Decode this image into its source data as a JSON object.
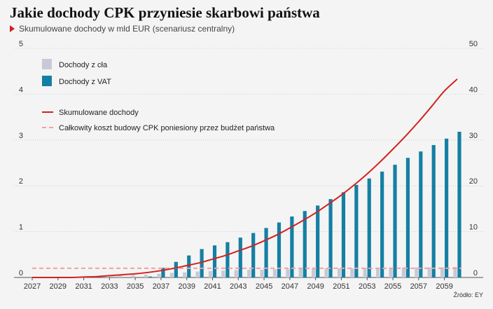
{
  "title": "Jakie dochody CPK przyniesie skarbowi państwa",
  "subtitle": "Skumulowane dochody w mld EUR (scenariusz centralny)",
  "source": "Źródło: EY",
  "colors": {
    "cla": "#c7c9d8",
    "vat": "#157fa3",
    "cumulative": "#d2221e",
    "cost": "#f2a1a0",
    "grid": "#c8c8c8"
  },
  "chart_data": {
    "type": "bar",
    "x": [
      2027,
      2028,
      2029,
      2030,
      2031,
      2032,
      2033,
      2034,
      2035,
      2036,
      2037,
      2038,
      2039,
      2040,
      2041,
      2042,
      2043,
      2044,
      2045,
      2046,
      2047,
      2048,
      2049,
      2050,
      2051,
      2052,
      2053,
      2054,
      2055,
      2056,
      2057,
      2058,
      2059,
      2060
    ],
    "x_tick_labels": [
      "2027",
      "2029",
      "2031",
      "2033",
      "2035",
      "2037",
      "2039",
      "2041",
      "2043",
      "2045",
      "2047",
      "2049",
      "2051",
      "2053",
      "2055",
      "2057",
      "2059"
    ],
    "left_axis": {
      "ylim": [
        0,
        5
      ],
      "ticks": [
        "0",
        "1",
        "2",
        "3",
        "4",
        "5"
      ]
    },
    "right_axis": {
      "ylim": [
        0,
        50
      ],
      "ticks": [
        "0",
        "10",
        "20",
        "30",
        "40",
        "50"
      ]
    },
    "legend_position": "top-left",
    "series": [
      {
        "name": "Dochody z cła",
        "type": "bar",
        "axis": "left",
        "values": [
          0,
          0,
          0,
          0,
          0.01,
          0.02,
          0.03,
          0.04,
          0.05,
          0.06,
          0.08,
          0.1,
          0.11,
          0.13,
          0.14,
          0.15,
          0.16,
          0.17,
          0.17,
          0.18,
          0.18,
          0.19,
          0.19,
          0.2,
          0.2,
          0.2,
          0.21,
          0.21,
          0.21,
          0.22,
          0.22,
          0.22,
          0.22,
          0.23
        ]
      },
      {
        "name": "Dochody z VAT",
        "type": "bar",
        "axis": "left",
        "values": [
          0,
          0,
          0,
          0,
          0,
          0,
          0,
          0,
          0,
          0.02,
          0.21,
          0.34,
          0.48,
          0.62,
          0.7,
          0.77,
          0.87,
          0.97,
          1.08,
          1.2,
          1.33,
          1.45,
          1.57,
          1.71,
          1.86,
          2.02,
          2.16,
          2.31,
          2.46,
          2.61,
          2.75,
          2.89,
          3.03,
          3.18
        ]
      },
      {
        "name": "Skumulowane dochody",
        "type": "line",
        "axis": "right",
        "values": [
          0,
          0,
          0,
          0,
          0.1,
          0.2,
          0.4,
          0.6,
          0.8,
          1.1,
          1.5,
          2.0,
          2.6,
          3.2,
          4.0,
          4.8,
          5.8,
          6.8,
          8.0,
          9.3,
          10.8,
          12.4,
          14.1,
          16.0,
          18.0,
          20.2,
          22.6,
          25.2,
          28.0,
          30.9,
          34.0,
          37.3,
          40.7,
          43.3
        ]
      },
      {
        "name": "Całkowity koszt budowy CPK poniesiony przez budżet państwa",
        "type": "hline",
        "axis": "left",
        "value": 0.2
      }
    ]
  }
}
